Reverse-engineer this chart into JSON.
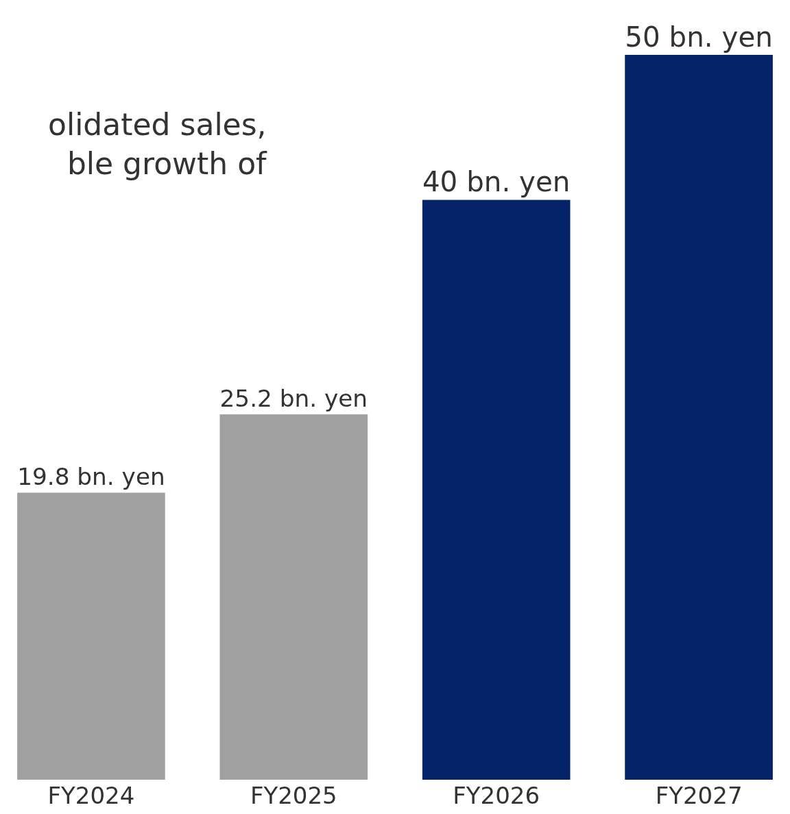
{
  "chart_data": {
    "type": "bar",
    "categories": [
      "FY2024",
      "FY2025",
      "FY2026",
      "FY2027"
    ],
    "values": [
      19.8,
      25.2,
      40,
      50
    ],
    "colors": [
      "#a0a0a0",
      "#a0a0a0",
      "#042268",
      "#042268"
    ],
    "value_labels": [
      "19.8 bn. yen",
      "25.2 bn. yen",
      "40 bn. yen",
      "50 bn. yen"
    ],
    "annotations": [
      "olidated sales,\nble growth of"
    ]
  }
}
